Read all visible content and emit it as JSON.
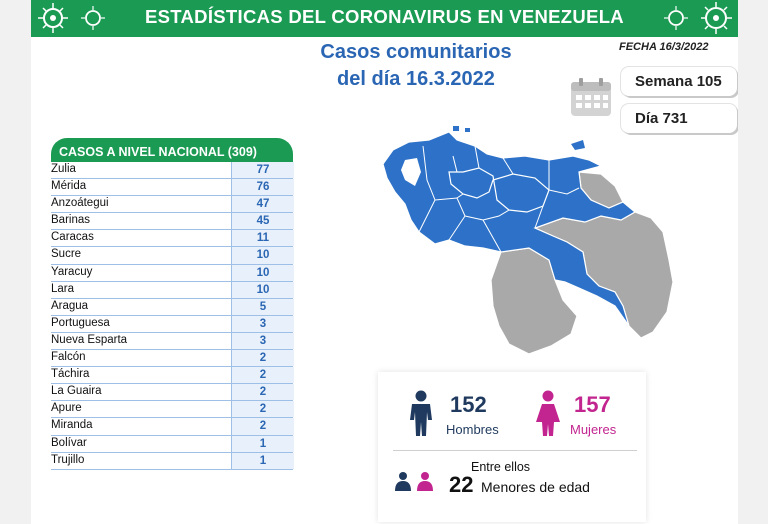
{
  "banner": {
    "title": "ESTADÍSTICAS DEL CORONAVIRUS EN VENEZUELA"
  },
  "headline": {
    "line1": "Casos comunitarios",
    "line2": "del día 16.3.2022"
  },
  "fecha": "FECHA 16/3/2022",
  "semana": "Semana 105",
  "dia": "Día 731",
  "table": {
    "header": "CASOS A NIVEL NACIONAL (309)",
    "rows": [
      {
        "state": "Zulia",
        "value": "77"
      },
      {
        "state": "Mérida",
        "value": "76"
      },
      {
        "state": "Anzoátegui",
        "value": "47"
      },
      {
        "state": "Barinas",
        "value": "45"
      },
      {
        "state": "Caracas",
        "value": "11"
      },
      {
        "state": "Sucre",
        "value": "10"
      },
      {
        "state": "Yaracuy",
        "value": "10"
      },
      {
        "state": "Lara",
        "value": "10"
      },
      {
        "state": "Aragua",
        "value": "5"
      },
      {
        "state": "Portuguesa",
        "value": "3"
      },
      {
        "state": "Nueva Esparta",
        "value": "3"
      },
      {
        "state": "Falcón",
        "value": "2"
      },
      {
        "state": "Táchira",
        "value": "2"
      },
      {
        "state": "La Guaira",
        "value": "2"
      },
      {
        "state": "Apure",
        "value": "2"
      },
      {
        "state": "Miranda",
        "value": "2"
      },
      {
        "state": "Bolívar",
        "value": "1"
      },
      {
        "state": "Trujillo",
        "value": "1"
      }
    ]
  },
  "gender": {
    "men_count": "152",
    "men_label": "Hombres",
    "women_count": "157",
    "women_label": "Mujeres",
    "entre": "Entre ellos",
    "minors_count": "22",
    "minors_label": "Menores de edad"
  },
  "colors": {
    "green": "#1a9a52",
    "blue": "#2a66b3",
    "pink": "#c2258f",
    "navy": "#1f3a5e",
    "map_blue": "#2d72c8",
    "map_gray": "#a9a9a9"
  },
  "icons": [
    "virus-icon",
    "calendar-icon",
    "man-icon",
    "woman-icon",
    "child-pair-icon"
  ]
}
